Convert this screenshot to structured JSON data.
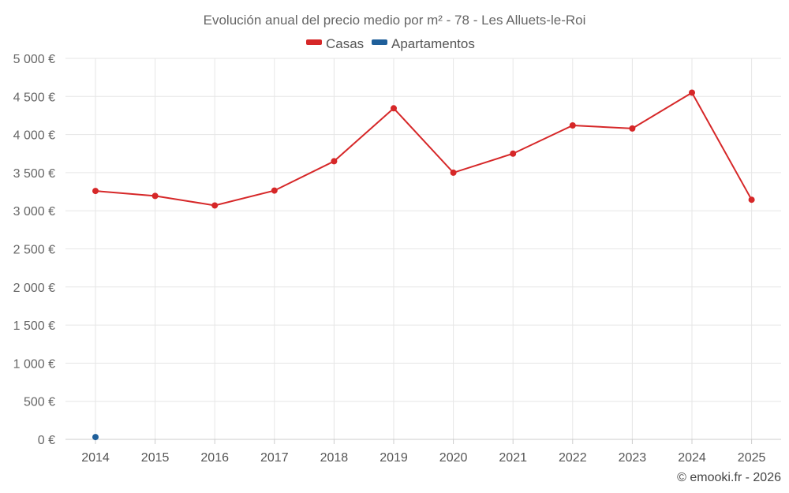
{
  "chart_data": {
    "type": "line",
    "title": "Evolución anual del precio medio por m² - 78 - Les Alluets-le-Roi",
    "categories": [
      "2014",
      "2015",
      "2016",
      "2017",
      "2018",
      "2019",
      "2020",
      "2021",
      "2022",
      "2023",
      "2024",
      "2025"
    ],
    "series": [
      {
        "name": "Casas",
        "color": "#d62728",
        "values": [
          3260,
          3195,
          3070,
          3265,
          3650,
          4345,
          3500,
          3750,
          4120,
          4080,
          4550,
          3145
        ]
      },
      {
        "name": "Apartamentos",
        "color": "#1f5f9a",
        "values": [
          30,
          null,
          null,
          null,
          null,
          null,
          null,
          null,
          null,
          null,
          null,
          null
        ]
      }
    ],
    "ylim": [
      0,
      5000
    ],
    "yticks": [
      0,
      500,
      1000,
      1500,
      2000,
      2500,
      3000,
      3500,
      4000,
      4500,
      5000
    ],
    "ytick_labels": [
      "0 €",
      "500 €",
      "1 000 €",
      "1 500 €",
      "2 000 €",
      "2 500 €",
      "3 000 €",
      "3 500 €",
      "4 000 €",
      "4 500 €",
      "5 000 €"
    ],
    "xlabel": "",
    "ylabel": "",
    "grid": true,
    "legend_position": "top-center"
  },
  "credit": "© emooki.fr - 2026"
}
